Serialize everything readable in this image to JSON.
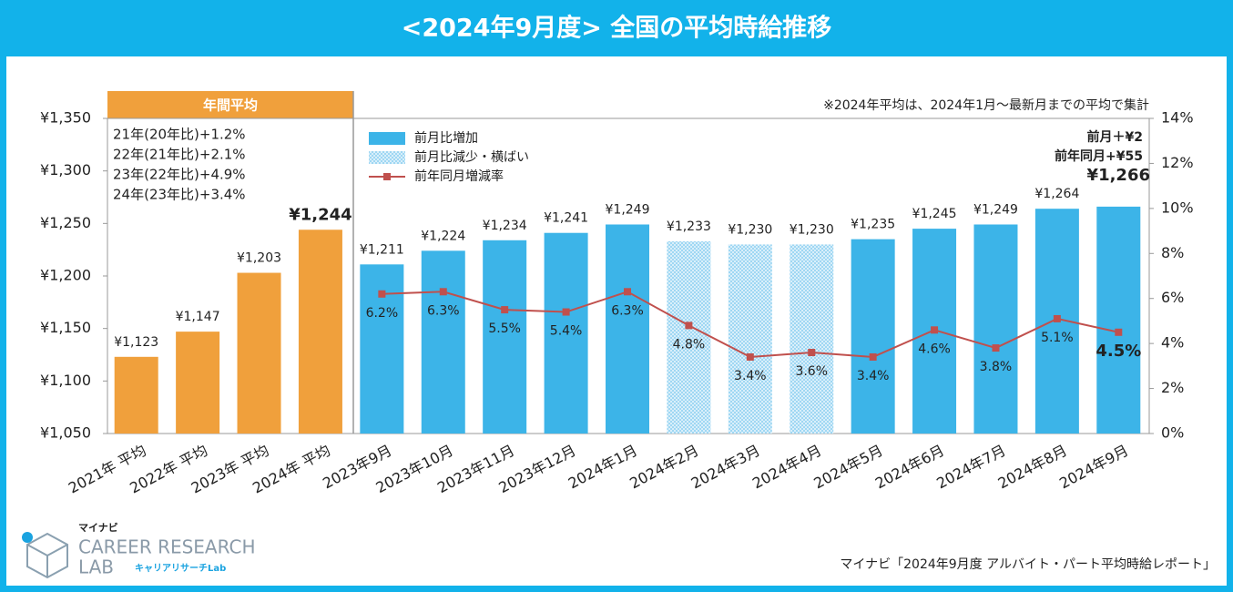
{
  "chart_data": {
    "type": "bar",
    "title": "<2024年9月度>  全国の平均時給推移",
    "annotation": "※2024年平均は、2024年1月～最新月までの平均で集計",
    "group_header": "年間平均",
    "notes": [
      "21年(20年比)+1.2%",
      "22年(21年比)+2.1%",
      "23年(22年比)+4.9%",
      "24年(23年比)+3.4%"
    ],
    "callouts": [
      "前月＋¥2",
      "前年同月+¥55"
    ],
    "categories": [
      "2021年 平均",
      "2022年 平均",
      "2023年 平均",
      "2024年 平均",
      "2023年9月",
      "2023年10月",
      "2023年11月",
      "2023年12月",
      "2024年1月",
      "2024年2月",
      "2024年3月",
      "2024年4月",
      "2024年5月",
      "2024年6月",
      "2024年7月",
      "2024年8月",
      "2024年9月"
    ],
    "series": [
      {
        "name": "年間平均",
        "color": "#f0a03c",
        "legend": false,
        "values": [
          1123,
          1147,
          1203,
          1244,
          null,
          null,
          null,
          null,
          null,
          null,
          null,
          null,
          null,
          null,
          null,
          null,
          null
        ],
        "value_labels": [
          "¥1,123",
          "¥1,147",
          "¥1,203",
          "¥1,244",
          null,
          null,
          null,
          null,
          null,
          null,
          null,
          null,
          null,
          null,
          null,
          null,
          null
        ]
      },
      {
        "name": "前月比増加",
        "color": "#3cb4e8",
        "values": [
          null,
          null,
          null,
          null,
          1211,
          1224,
          1234,
          1241,
          1249,
          null,
          null,
          null,
          1235,
          1245,
          1249,
          1264,
          1266
        ],
        "value_labels": [
          null,
          null,
          null,
          null,
          "¥1,211",
          "¥1,224",
          "¥1,234",
          "¥1,241",
          "¥1,249",
          null,
          null,
          null,
          "¥1,235",
          "¥1,245",
          "¥1,249",
          "¥1,264",
          "¥1,266"
        ]
      },
      {
        "name": "前月比減少・横ばい",
        "color": "#9fd7f3",
        "hatch": true,
        "values": [
          null,
          null,
          null,
          null,
          null,
          null,
          null,
          null,
          null,
          1233,
          1230,
          1230,
          null,
          null,
          null,
          null,
          null
        ],
        "value_labels": [
          null,
          null,
          null,
          null,
          null,
          null,
          null,
          null,
          null,
          "¥1,233",
          "¥1,230",
          "¥1,230",
          null,
          null,
          null,
          null,
          null
        ]
      },
      {
        "name": "前年同月増減率",
        "color": "#c0504d",
        "axis": "y2",
        "values": [
          null,
          null,
          null,
          null,
          6.2,
          6.3,
          5.5,
          5.4,
          6.3,
          4.8,
          3.4,
          3.6,
          3.4,
          4.6,
          3.8,
          5.1,
          4.5
        ],
        "value_labels": [
          null,
          null,
          null,
          null,
          "6.2%",
          "6.3%",
          "5.5%",
          "5.4%",
          "6.3%",
          "4.8%",
          "3.4%",
          "3.6%",
          "3.4%",
          "4.6%",
          "3.8%",
          "5.1%",
          "4.5%"
        ]
      }
    ],
    "ylim": [
      1050,
      1350
    ],
    "yticks": [
      {
        "value": 1050,
        "label": "¥1,050"
      },
      {
        "value": 1100,
        "label": "¥1,100"
      },
      {
        "value": 1150,
        "label": "¥1,150"
      },
      {
        "value": 1200,
        "label": "¥1,200"
      },
      {
        "value": 1250,
        "label": "¥1,250"
      },
      {
        "value": 1300,
        "label": "¥1,300"
      },
      {
        "value": 1350,
        "label": "¥1,350"
      }
    ],
    "y2lim": [
      0,
      14
    ],
    "y2ticks": [
      {
        "value": 0,
        "label": "0%"
      },
      {
        "value": 2,
        "label": "2%"
      },
      {
        "value": 4,
        "label": "4%"
      },
      {
        "value": 6,
        "label": "6%"
      },
      {
        "value": 8,
        "label": "8%"
      },
      {
        "value": 10,
        "label": "10%"
      },
      {
        "value": 12,
        "label": "12%"
      },
      {
        "value": 14,
        "label": "14%"
      }
    ]
  },
  "source": "マイナビ「2024年9月度 アルバイト・パート平均時給レポート」",
  "logo": {
    "brand": "マイナビ",
    "line1": "CAREER RESEARCH",
    "line2": "LAB",
    "sub": "キャリアリサーチLab"
  }
}
